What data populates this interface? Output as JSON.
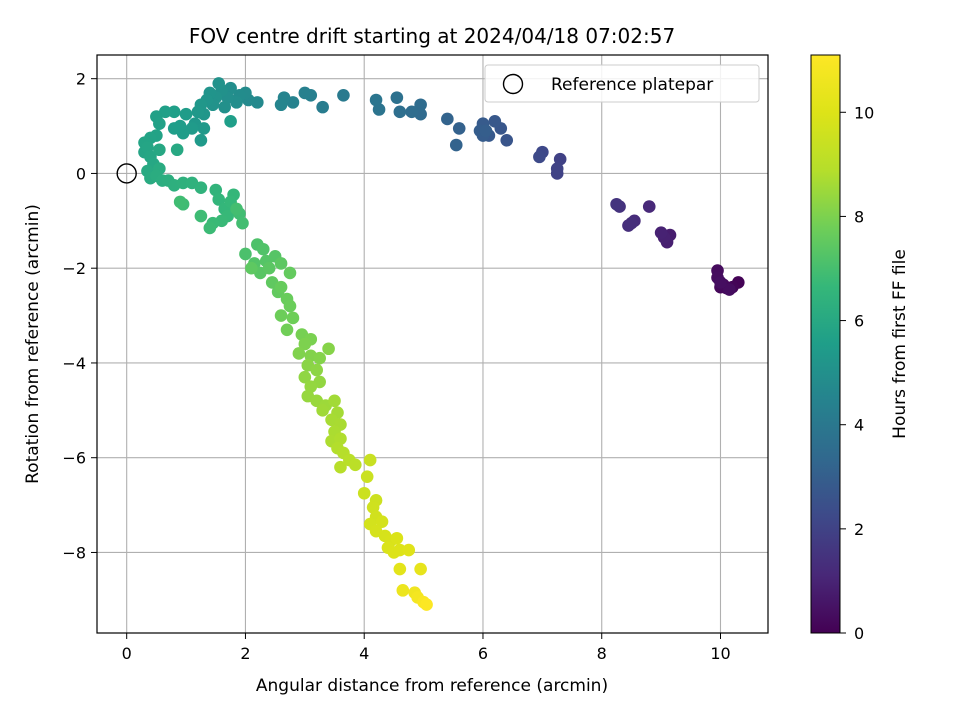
{
  "chart_data": {
    "type": "scatter",
    "title": "FOV centre drift starting at 2024/04/18 07:02:57",
    "xlabel": "Angular distance from reference (arcmin)",
    "ylabel": "Rotation from reference (arcmin)",
    "xlim": [
      -0.5,
      10.8
    ],
    "ylim": [
      -9.7,
      2.5
    ],
    "xticks": [
      "0",
      "2",
      "4",
      "6",
      "8",
      "10"
    ],
    "yticks": [
      "2",
      "0",
      "−2",
      "−4",
      "−6",
      "−8"
    ],
    "grid": true,
    "colormap": "viridis",
    "colorbar": {
      "label": "Hours from first FF file",
      "range": [
        0,
        11.1
      ],
      "ticks": [
        "0",
        "2",
        "4",
        "6",
        "8",
        "10"
      ]
    },
    "legend": {
      "placement": "top-right",
      "entries": [
        "Reference platepar"
      ]
    },
    "reference_point": {
      "x": 0,
      "y": 0
    },
    "points": [
      {
        "x": 10.3,
        "y": -2.3,
        "t": 0.05
      },
      {
        "x": 10.2,
        "y": -2.4,
        "t": 0.1
      },
      {
        "x": 10.1,
        "y": -2.42,
        "t": 0.15
      },
      {
        "x": 10.0,
        "y": -2.4,
        "t": 0.2
      },
      {
        "x": 10.05,
        "y": -2.35,
        "t": 0.22
      },
      {
        "x": 9.95,
        "y": -2.05,
        "t": 0.28
      },
      {
        "x": 9.95,
        "y": -2.2,
        "t": 0.3
      },
      {
        "x": 10.15,
        "y": -2.45,
        "t": 0.33
      },
      {
        "x": 10.0,
        "y": -2.3,
        "t": 0.36
      },
      {
        "x": 9.15,
        "y": -1.3,
        "t": 0.8
      },
      {
        "x": 9.1,
        "y": -1.45,
        "t": 0.85
      },
      {
        "x": 9.05,
        "y": -1.35,
        "t": 0.9
      },
      {
        "x": 9.0,
        "y": -1.25,
        "t": 0.95
      },
      {
        "x": 8.8,
        "y": -0.7,
        "t": 1.15
      },
      {
        "x": 8.55,
        "y": -1.0,
        "t": 1.25
      },
      {
        "x": 8.45,
        "y": -1.1,
        "t": 1.3
      },
      {
        "x": 8.5,
        "y": -1.05,
        "t": 1.33
      },
      {
        "x": 8.3,
        "y": -0.7,
        "t": 1.45
      },
      {
        "x": 8.25,
        "y": -0.65,
        "t": 1.5
      },
      {
        "x": 7.3,
        "y": 0.3,
        "t": 1.95
      },
      {
        "x": 7.25,
        "y": 0.0,
        "t": 2.0
      },
      {
        "x": 7.25,
        "y": 0.1,
        "t": 2.03
      },
      {
        "x": 7.0,
        "y": 0.45,
        "t": 2.2
      },
      {
        "x": 6.95,
        "y": 0.35,
        "t": 2.25
      },
      {
        "x": 6.4,
        "y": 0.7,
        "t": 2.65
      },
      {
        "x": 6.3,
        "y": 0.95,
        "t": 2.7
      },
      {
        "x": 6.2,
        "y": 1.1,
        "t": 2.75
      },
      {
        "x": 6.1,
        "y": 0.8,
        "t": 2.8
      },
      {
        "x": 6.0,
        "y": 1.05,
        "t": 2.85
      },
      {
        "x": 6.0,
        "y": 0.8,
        "t": 2.9
      },
      {
        "x": 5.95,
        "y": 0.9,
        "t": 2.95
      },
      {
        "x": 6.05,
        "y": 0.9,
        "t": 2.98
      },
      {
        "x": 5.6,
        "y": 0.95,
        "t": 3.1
      },
      {
        "x": 5.55,
        "y": 0.6,
        "t": 3.15
      },
      {
        "x": 5.4,
        "y": 1.15,
        "t": 3.2
      },
      {
        "x": 4.95,
        "y": 1.25,
        "t": 3.45
      },
      {
        "x": 4.95,
        "y": 1.45,
        "t": 3.5
      },
      {
        "x": 4.8,
        "y": 1.3,
        "t": 3.55
      },
      {
        "x": 4.6,
        "y": 1.3,
        "t": 3.65
      },
      {
        "x": 4.55,
        "y": 1.6,
        "t": 3.7
      },
      {
        "x": 4.25,
        "y": 1.35,
        "t": 3.85
      },
      {
        "x": 4.2,
        "y": 1.55,
        "t": 3.9
      },
      {
        "x": 3.65,
        "y": 1.65,
        "t": 4.1
      },
      {
        "x": 3.3,
        "y": 1.4,
        "t": 4.2
      },
      {
        "x": 3.1,
        "y": 1.65,
        "t": 4.3
      },
      {
        "x": 3.0,
        "y": 1.7,
        "t": 4.35
      },
      {
        "x": 2.8,
        "y": 1.5,
        "t": 4.45
      },
      {
        "x": 2.65,
        "y": 1.6,
        "t": 4.5
      },
      {
        "x": 2.6,
        "y": 1.45,
        "t": 4.55
      },
      {
        "x": 2.2,
        "y": 1.5,
        "t": 4.7
      },
      {
        "x": 2.05,
        "y": 1.55,
        "t": 4.75
      },
      {
        "x": 2.0,
        "y": 1.7,
        "t": 4.8
      },
      {
        "x": 1.9,
        "y": 1.65,
        "t": 4.85
      },
      {
        "x": 1.85,
        "y": 1.5,
        "t": 4.9
      },
      {
        "x": 1.75,
        "y": 1.8,
        "t": 4.93
      },
      {
        "x": 1.7,
        "y": 1.6,
        "t": 4.96
      },
      {
        "x": 1.65,
        "y": 1.4,
        "t": 5.0
      },
      {
        "x": 1.6,
        "y": 1.75,
        "t": 5.03
      },
      {
        "x": 1.55,
        "y": 1.9,
        "t": 5.06
      },
      {
        "x": 1.5,
        "y": 1.6,
        "t": 5.1
      },
      {
        "x": 1.45,
        "y": 1.45,
        "t": 5.13
      },
      {
        "x": 1.4,
        "y": 1.7,
        "t": 5.16
      },
      {
        "x": 1.35,
        "y": 1.55,
        "t": 5.2
      },
      {
        "x": 1.3,
        "y": 1.25,
        "t": 5.23
      },
      {
        "x": 1.25,
        "y": 1.45,
        "t": 5.26
      },
      {
        "x": 1.2,
        "y": 1.3,
        "t": 5.3
      },
      {
        "x": 1.15,
        "y": 1.05,
        "t": 5.33
      },
      {
        "x": 1.3,
        "y": 0.95,
        "t": 5.36
      },
      {
        "x": 1.25,
        "y": 0.7,
        "t": 5.4
      },
      {
        "x": 1.1,
        "y": 0.95,
        "t": 5.43
      },
      {
        "x": 1.0,
        "y": 1.25,
        "t": 5.46
      },
      {
        "x": 0.95,
        "y": 0.85,
        "t": 5.5
      },
      {
        "x": 0.9,
        "y": 1.0,
        "t": 5.53
      },
      {
        "x": 0.8,
        "y": 0.95,
        "t": 5.56
      },
      {
        "x": 1.75,
        "y": 1.1,
        "t": 5.58
      },
      {
        "x": 0.8,
        "y": 1.3,
        "t": 5.6
      },
      {
        "x": 0.65,
        "y": 1.3,
        "t": 5.63
      },
      {
        "x": 0.5,
        "y": 1.2,
        "t": 5.66
      },
      {
        "x": 0.55,
        "y": 1.05,
        "t": 5.7
      },
      {
        "x": 0.5,
        "y": 0.8,
        "t": 5.73
      },
      {
        "x": 0.4,
        "y": 0.75,
        "t": 5.76
      },
      {
        "x": 0.3,
        "y": 0.65,
        "t": 5.8
      },
      {
        "x": 0.3,
        "y": 0.45,
        "t": 5.83
      },
      {
        "x": 0.35,
        "y": 0.55,
        "t": 5.86
      },
      {
        "x": 0.4,
        "y": 0.35,
        "t": 5.9
      },
      {
        "x": 0.45,
        "y": 0.2,
        "t": 5.93
      },
      {
        "x": 0.55,
        "y": 0.5,
        "t": 5.96
      },
      {
        "x": 0.85,
        "y": 0.5,
        "t": 6.0
      },
      {
        "x": 0.35,
        "y": 0.05,
        "t": 6.05
      },
      {
        "x": 0.4,
        "y": -0.1,
        "t": 6.1
      },
      {
        "x": 0.55,
        "y": 0.1,
        "t": 6.13
      },
      {
        "x": 0.5,
        "y": -0.05,
        "t": 6.16
      },
      {
        "x": 0.6,
        "y": -0.15,
        "t": 6.2
      },
      {
        "x": 0.7,
        "y": -0.15,
        "t": 6.25
      },
      {
        "x": 0.8,
        "y": -0.25,
        "t": 6.3
      },
      {
        "x": 0.95,
        "y": -0.2,
        "t": 6.35
      },
      {
        "x": 1.1,
        "y": -0.2,
        "t": 6.4
      },
      {
        "x": 1.25,
        "y": -0.3,
        "t": 6.45
      },
      {
        "x": 1.5,
        "y": -0.35,
        "t": 6.5
      },
      {
        "x": 1.55,
        "y": -0.55,
        "t": 6.55
      },
      {
        "x": 1.65,
        "y": -0.75,
        "t": 6.6
      },
      {
        "x": 1.8,
        "y": -0.45,
        "t": 6.63
      },
      {
        "x": 1.75,
        "y": -0.6,
        "t": 6.66
      },
      {
        "x": 1.7,
        "y": -0.9,
        "t": 6.7
      },
      {
        "x": 1.6,
        "y": -1.0,
        "t": 6.73
      },
      {
        "x": 1.45,
        "y": -1.05,
        "t": 6.76
      },
      {
        "x": 1.4,
        "y": -1.15,
        "t": 6.8
      },
      {
        "x": 1.25,
        "y": -0.9,
        "t": 6.83
      },
      {
        "x": 0.95,
        "y": -0.65,
        "t": 6.86
      },
      {
        "x": 0.9,
        "y": -0.6,
        "t": 6.88
      },
      {
        "x": 1.9,
        "y": -0.85,
        "t": 6.9
      },
      {
        "x": 1.95,
        "y": -1.05,
        "t": 6.93
      },
      {
        "x": 1.85,
        "y": -0.75,
        "t": 6.96
      },
      {
        "x": 2.0,
        "y": -1.7,
        "t": 7.1
      },
      {
        "x": 2.2,
        "y": -1.5,
        "t": 7.15
      },
      {
        "x": 2.3,
        "y": -1.6,
        "t": 7.2
      },
      {
        "x": 2.15,
        "y": -1.9,
        "t": 7.25
      },
      {
        "x": 2.35,
        "y": -1.85,
        "t": 7.28
      },
      {
        "x": 2.5,
        "y": -1.75,
        "t": 7.3
      },
      {
        "x": 2.25,
        "y": -2.1,
        "t": 7.35
      },
      {
        "x": 2.4,
        "y": -2.0,
        "t": 7.4
      },
      {
        "x": 2.6,
        "y": -1.9,
        "t": 7.43
      },
      {
        "x": 2.1,
        "y": -2.0,
        "t": 7.46
      },
      {
        "x": 2.45,
        "y": -2.3,
        "t": 7.5
      },
      {
        "x": 2.55,
        "y": -2.5,
        "t": 7.55
      },
      {
        "x": 2.75,
        "y": -2.1,
        "t": 7.58
      },
      {
        "x": 2.6,
        "y": -2.4,
        "t": 7.62
      },
      {
        "x": 2.7,
        "y": -2.65,
        "t": 7.66
      },
      {
        "x": 2.75,
        "y": -2.8,
        "t": 7.7
      },
      {
        "x": 2.6,
        "y": -3.0,
        "t": 7.73
      },
      {
        "x": 2.8,
        "y": -3.05,
        "t": 7.76
      },
      {
        "x": 2.7,
        "y": -3.3,
        "t": 7.8
      },
      {
        "x": 2.95,
        "y": -3.4,
        "t": 7.9
      },
      {
        "x": 3.1,
        "y": -3.5,
        "t": 7.95
      },
      {
        "x": 3.0,
        "y": -3.6,
        "t": 8.0
      },
      {
        "x": 2.9,
        "y": -3.8,
        "t": 8.05
      },
      {
        "x": 3.1,
        "y": -3.85,
        "t": 8.08
      },
      {
        "x": 3.25,
        "y": -3.9,
        "t": 8.12
      },
      {
        "x": 3.4,
        "y": -3.7,
        "t": 8.15
      },
      {
        "x": 3.05,
        "y": -4.05,
        "t": 8.2
      },
      {
        "x": 3.2,
        "y": -4.15,
        "t": 8.25
      },
      {
        "x": 3.0,
        "y": -4.3,
        "t": 8.3
      },
      {
        "x": 3.25,
        "y": -4.4,
        "t": 8.33
      },
      {
        "x": 3.1,
        "y": -4.5,
        "t": 8.36
      },
      {
        "x": 3.05,
        "y": -4.7,
        "t": 8.4
      },
      {
        "x": 3.2,
        "y": -4.8,
        "t": 8.45
      },
      {
        "x": 3.35,
        "y": -4.9,
        "t": 8.5
      },
      {
        "x": 3.3,
        "y": -5.0,
        "t": 8.55
      },
      {
        "x": 3.5,
        "y": -4.8,
        "t": 8.58
      },
      {
        "x": 3.55,
        "y": -5.05,
        "t": 8.62
      },
      {
        "x": 3.45,
        "y": -5.2,
        "t": 8.66
      },
      {
        "x": 3.6,
        "y": -5.3,
        "t": 8.7
      },
      {
        "x": 3.5,
        "y": -5.45,
        "t": 8.73
      },
      {
        "x": 3.45,
        "y": -5.65,
        "t": 8.76
      },
      {
        "x": 3.6,
        "y": -5.6,
        "t": 8.8
      },
      {
        "x": 3.55,
        "y": -5.8,
        "t": 8.85
      },
      {
        "x": 3.65,
        "y": -5.9,
        "t": 8.9
      },
      {
        "x": 3.6,
        "y": -6.2,
        "t": 8.95
      },
      {
        "x": 3.75,
        "y": -6.05,
        "t": 9.0
      },
      {
        "x": 3.85,
        "y": -6.15,
        "t": 9.05
      },
      {
        "x": 4.1,
        "y": -6.05,
        "t": 9.4
      },
      {
        "x": 4.05,
        "y": -6.4,
        "t": 9.45
      },
      {
        "x": 4.0,
        "y": -6.75,
        "t": 9.5
      },
      {
        "x": 4.2,
        "y": -6.9,
        "t": 9.55
      },
      {
        "x": 4.15,
        "y": -7.05,
        "t": 9.6
      },
      {
        "x": 4.2,
        "y": -7.25,
        "t": 9.65
      },
      {
        "x": 4.1,
        "y": -7.4,
        "t": 9.7
      },
      {
        "x": 4.3,
        "y": -7.35,
        "t": 9.73
      },
      {
        "x": 4.2,
        "y": -7.55,
        "t": 9.76
      },
      {
        "x": 4.35,
        "y": -7.65,
        "t": 9.8
      },
      {
        "x": 4.45,
        "y": -7.75,
        "t": 9.85
      },
      {
        "x": 4.4,
        "y": -7.9,
        "t": 9.9
      },
      {
        "x": 4.55,
        "y": -7.7,
        "t": 9.93
      },
      {
        "x": 4.5,
        "y": -8.0,
        "t": 9.96
      },
      {
        "x": 4.6,
        "y": -7.95,
        "t": 10.0
      },
      {
        "x": 4.75,
        "y": -7.95,
        "t": 10.1
      },
      {
        "x": 4.6,
        "y": -8.35,
        "t": 10.2
      },
      {
        "x": 4.95,
        "y": -8.35,
        "t": 10.35
      },
      {
        "x": 4.65,
        "y": -8.8,
        "t": 10.5
      },
      {
        "x": 4.85,
        "y": -8.85,
        "t": 10.65
      },
      {
        "x": 4.9,
        "y": -8.95,
        "t": 10.8
      },
      {
        "x": 5.0,
        "y": -9.05,
        "t": 10.95
      },
      {
        "x": 5.05,
        "y": -9.1,
        "t": 11.05
      }
    ]
  }
}
